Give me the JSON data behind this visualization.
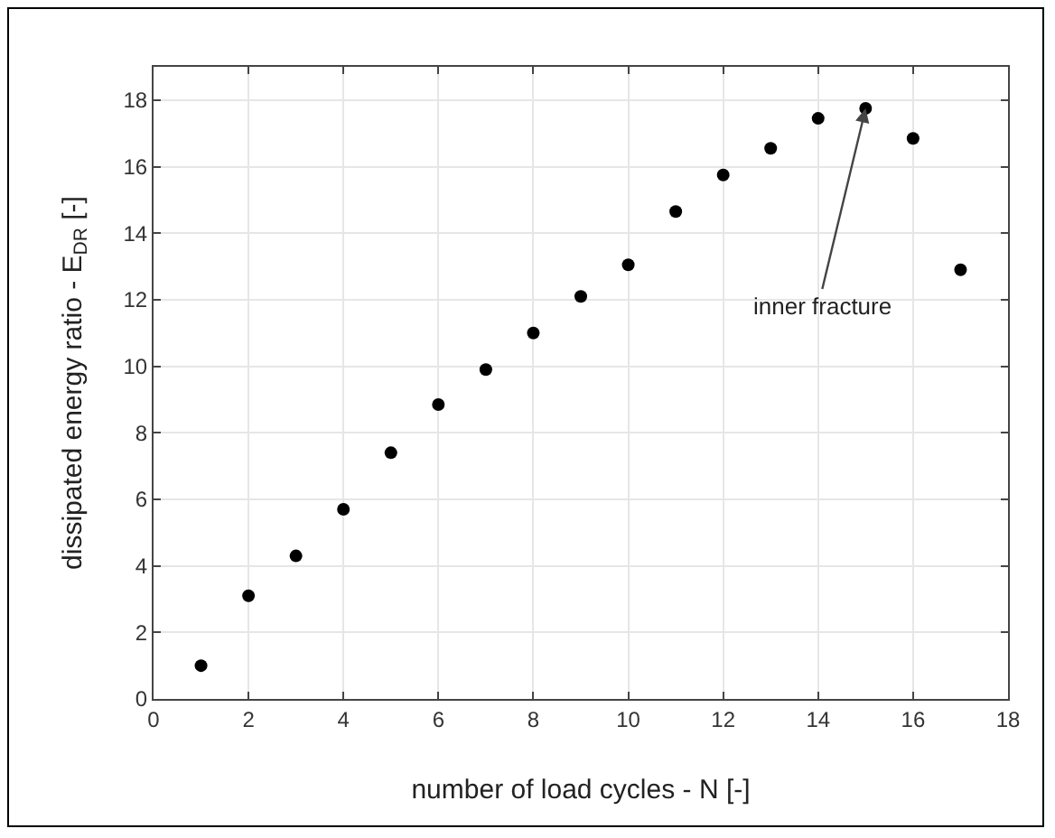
{
  "chart_data": {
    "type": "scatter",
    "xlabel": "number of load cycles - N [-]",
    "ylabel": "dissipated energy ratio - E$_{DR}$ [-]",
    "x": [
      1,
      2,
      3,
      4,
      5,
      6,
      7,
      8,
      9,
      10,
      11,
      12,
      13,
      14,
      15,
      16,
      17
    ],
    "values": [
      1.0,
      3.1,
      4.3,
      5.7,
      7.4,
      8.85,
      9.9,
      11.0,
      12.1,
      13.05,
      14.65,
      15.75,
      16.55,
      17.45,
      17.75,
      16.85,
      12.9
    ],
    "color": "#000000",
    "marker": "circle",
    "xlim": [
      0,
      18
    ],
    "xticks": [
      0,
      2,
      4,
      6,
      8,
      10,
      12,
      14,
      16,
      18
    ],
    "ylim": [
      0,
      19
    ],
    "yticks": [
      0,
      2,
      4,
      6,
      8,
      10,
      12,
      14,
      16,
      18
    ],
    "grid": true,
    "annotations": [
      {
        "text": "inner fracture",
        "x": 15,
        "y": 17.75
      }
    ]
  }
}
